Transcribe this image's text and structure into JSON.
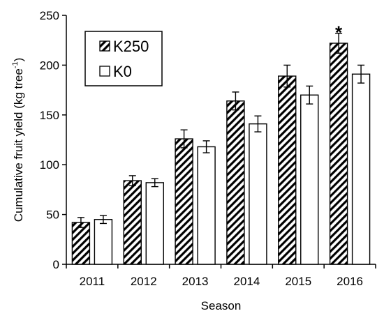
{
  "chart_data": {
    "type": "bar",
    "title": "",
    "xlabel": "Season",
    "ylabel": "Cumulative fruit yield (kg tree",
    "ylabel_sup": "-1",
    "ylabel_suffix": ")",
    "categories": [
      "2011",
      "2012",
      "2013",
      "2014",
      "2015",
      "2016"
    ],
    "ylim": [
      0,
      250
    ],
    "yticks": [
      0,
      50,
      100,
      150,
      200,
      250
    ],
    "grid": false,
    "legend_position": "top-left",
    "series": [
      {
        "name": "K250",
        "pattern": "diagonal-hatch",
        "color": "#000000",
        "values": [
          42,
          84,
          126,
          164,
          189,
          222
        ],
        "errors": [
          5,
          5,
          9,
          9,
          11,
          10
        ]
      },
      {
        "name": "K0",
        "pattern": "none",
        "color": "#ffffff",
        "values": [
          45,
          82,
          118,
          141,
          170,
          191
        ],
        "errors": [
          4,
          4,
          6,
          8,
          9,
          9
        ]
      }
    ],
    "annotations": [
      {
        "category": "2016",
        "series": "K250",
        "text": "*"
      }
    ]
  }
}
